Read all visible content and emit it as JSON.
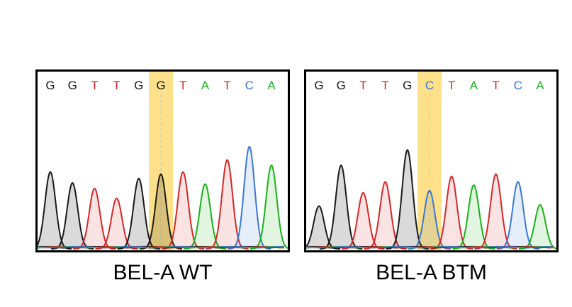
{
  "panels": [
    {
      "caption": "BEL-A WT",
      "bases": [
        "G",
        "G",
        "T",
        "T",
        "G",
        "G",
        "T",
        "A",
        "T",
        "C",
        "A"
      ],
      "highlight_index": 5,
      "peak_heights": [
        0.7,
        0.6,
        0.55,
        0.46,
        0.64,
        0.68,
        0.7,
        0.59,
        0.81,
        0.93,
        0.76
      ]
    },
    {
      "caption": "BEL-A BTM",
      "bases": [
        "G",
        "G",
        "T",
        "T",
        "G",
        "C",
        "T",
        "A",
        "T",
        "C",
        "A"
      ],
      "highlight_index": 5,
      "peak_heights": [
        0.39,
        0.76,
        0.51,
        0.61,
        0.9,
        0.53,
        0.66,
        0.58,
        0.68,
        0.61,
        0.4
      ]
    }
  ],
  "colors": {
    "G": "#1a1a1a",
    "T": "#d62828",
    "A": "#19b319",
    "C": "#3a78d4",
    "highlight": "#fde18a"
  }
}
